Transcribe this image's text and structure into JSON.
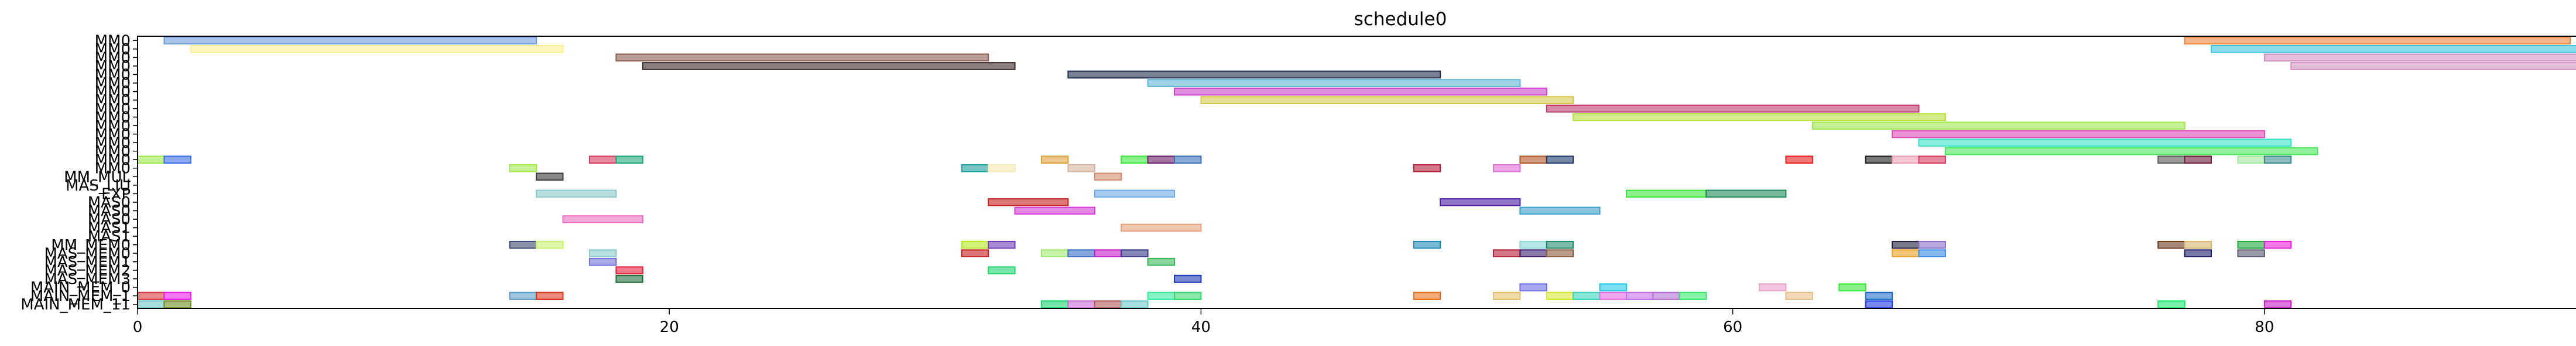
{
  "chart_data": {
    "type": "gantt",
    "title": "schedule0",
    "xlabel": "",
    "ylabel": "",
    "xlim": [
      0,
      95
    ],
    "xticks": [
      0,
      20,
      40,
      60,
      80
    ],
    "grid": false,
    "rows": [
      "MM0",
      "MM0",
      "MM0",
      "MM0",
      "MM0",
      "MM0",
      "MM0",
      "MM0",
      "MM0",
      "MM0",
      "MM0",
      "MM0",
      "MM0",
      "MM0",
      "MM0",
      "MM0",
      "MM_MUL",
      "MAS_LIU",
      "EXP",
      "MAS0",
      "MAS0",
      "MAS0",
      "MAS1",
      "MAS1",
      "MM_MEM0",
      "MAS_MEM0",
      "MAS_MEM1",
      "MAS_MEM2",
      "MAS_MEM3",
      "MAIN_MEM_0",
      "MAIN_MEM_1",
      "MAIN_MEM_11"
    ],
    "tasks": [
      {
        "row": 0,
        "start": 77,
        "end": 91.5,
        "color": "#e8843a"
      },
      {
        "row": 0,
        "start": 1,
        "end": 15,
        "color": "#6f9bd9"
      },
      {
        "row": 1,
        "start": 78,
        "end": 92.5,
        "color": "#3cc8e0"
      },
      {
        "row": 1,
        "start": 2,
        "end": 16,
        "color": "#f7f08f"
      },
      {
        "row": 2,
        "start": 80,
        "end": 95,
        "color": "#d291c0"
      },
      {
        "row": 2,
        "start": 18,
        "end": 32,
        "color": "#8c5e4f"
      },
      {
        "row": 3,
        "start": 81,
        "end": 95,
        "color": "#d291c0"
      },
      {
        "row": 3,
        "start": 19,
        "end": 33,
        "color": "#3a2a2a"
      },
      {
        "row": 4,
        "start": 35,
        "end": 49,
        "color": "#1e2a4a"
      },
      {
        "row": 5,
        "start": 38,
        "end": 52,
        "color": "#5fb6d6"
      },
      {
        "row": 6,
        "start": 39,
        "end": 53,
        "color": "#c945c9"
      },
      {
        "row": 7,
        "start": 40,
        "end": 54,
        "color": "#d6c94a"
      },
      {
        "row": 8,
        "start": 53,
        "end": 67,
        "color": "#c03a6e"
      },
      {
        "row": 9,
        "start": 54,
        "end": 68,
        "color": "#b5e03a"
      },
      {
        "row": 10,
        "start": 63,
        "end": 77,
        "color": "#9ee84a"
      },
      {
        "row": 11,
        "start": 66,
        "end": 80,
        "color": "#e04ab5"
      },
      {
        "row": 12,
        "start": 67,
        "end": 81,
        "color": "#3ae0c8"
      },
      {
        "row": 13,
        "start": 68,
        "end": 82,
        "color": "#4ae85a"
      },
      {
        "row": 14,
        "start": 0,
        "end": 1,
        "color": "#9ee84a"
      },
      {
        "row": 14,
        "start": 1,
        "end": 2,
        "color": "#3a6ee8"
      },
      {
        "row": 14,
        "start": 17,
        "end": 18,
        "color": "#d6385e"
      },
      {
        "row": 14,
        "start": 18,
        "end": 19,
        "color": "#1ea87a"
      },
      {
        "row": 14,
        "start": 62,
        "end": 63,
        "color": "#e81e1e"
      },
      {
        "row": 14,
        "start": 65,
        "end": 66,
        "color": "#1e1e1e"
      },
      {
        "row": 14,
        "start": 66,
        "end": 67,
        "color": "#e8a0b0"
      },
      {
        "row": 14,
        "start": 67,
        "end": 68,
        "color": "#d6385e"
      },
      {
        "row": 14,
        "start": 76,
        "end": 77,
        "color": "#5a5a5a"
      },
      {
        "row": 14,
        "start": 77,
        "end": 78,
        "color": "#6b1e3a"
      },
      {
        "row": 14,
        "start": 79,
        "end": 80,
        "color": "#a0e8a0"
      },
      {
        "row": 14,
        "start": 80,
        "end": 81,
        "color": "#3a8a8a"
      },
      {
        "row": 14,
        "start": 37,
        "end": 38,
        "color": "#3ae83a"
      },
      {
        "row": 14,
        "start": 38,
        "end": 39,
        "color": "#6b1e6b"
      },
      {
        "row": 14,
        "start": 39,
        "end": 40,
        "color": "#3a6eb5"
      },
      {
        "row": 14,
        "start": 52,
        "end": 53,
        "color": "#b5552a"
      },
      {
        "row": 14,
        "start": 53,
        "end": 54,
        "color": "#1e3a6b"
      },
      {
        "row": 14,
        "start": 34,
        "end": 35,
        "color": "#e0a03a"
      },
      {
        "row": 15,
        "start": 14,
        "end": 15,
        "color": "#9ee84a"
      },
      {
        "row": 15,
        "start": 31,
        "end": 32,
        "color": "#1ea0a0"
      },
      {
        "row": 15,
        "start": 32,
        "end": 33,
        "color": "#f7e8b5"
      },
      {
        "row": 15,
        "start": 35,
        "end": 36,
        "color": "#d6b59e"
      },
      {
        "row": 15,
        "start": 48,
        "end": 49,
        "color": "#b51e3a"
      },
      {
        "row": 15,
        "start": 51,
        "end": 52,
        "color": "#e06ed6"
      },
      {
        "row": 16,
        "start": 15,
        "end": 16,
        "color": "#3a3a3a"
      },
      {
        "row": 16,
        "start": 36,
        "end": 37,
        "color": "#d68a6e"
      },
      {
        "row": 18,
        "start": 15,
        "end": 18,
        "color": "#8ac8c8"
      },
      {
        "row": 18,
        "start": 36,
        "end": 39,
        "color": "#6ea8e8"
      },
      {
        "row": 18,
        "start": 56,
        "end": 59,
        "color": "#3ae83a"
      },
      {
        "row": 18,
        "start": 59,
        "end": 62,
        "color": "#1e8a5a"
      },
      {
        "row": 19,
        "start": 32,
        "end": 35,
        "color": "#c81e1e"
      },
      {
        "row": 19,
        "start": 49,
        "end": 52,
        "color": "#4a1ea8"
      },
      {
        "row": 20,
        "start": 33,
        "end": 36,
        "color": "#d63ad6"
      },
      {
        "row": 20,
        "start": 52,
        "end": 55,
        "color": "#3aa0c8"
      },
      {
        "row": 21,
        "start": 16,
        "end": 19,
        "color": "#e86ec0"
      },
      {
        "row": 22,
        "start": 37,
        "end": 40,
        "color": "#e8a07a"
      },
      {
        "row": 24,
        "start": 14,
        "end": 15,
        "color": "#3a4a6e"
      },
      {
        "row": 24,
        "start": 15,
        "end": 16,
        "color": "#c8f06e"
      },
      {
        "row": 24,
        "start": 31,
        "end": 32,
        "color": "#b5e81e"
      },
      {
        "row": 24,
        "start": 32,
        "end": 33,
        "color": "#6e3ab5"
      },
      {
        "row": 24,
        "start": 48,
        "end": 49,
        "color": "#1e8ab5"
      },
      {
        "row": 24,
        "start": 52,
        "end": 53,
        "color": "#8ad6d6"
      },
      {
        "row": 24,
        "start": 53,
        "end": 54,
        "color": "#1e8a6e"
      },
      {
        "row": 24,
        "start": 66,
        "end": 67,
        "color": "#1e1e3a"
      },
      {
        "row": 24,
        "start": 67,
        "end": 68,
        "color": "#8a6ec8"
      },
      {
        "row": 24,
        "start": 76,
        "end": 77,
        "color": "#6b3a1e"
      },
      {
        "row": 24,
        "start": 77,
        "end": 78,
        "color": "#d6b56e"
      },
      {
        "row": 24,
        "start": 79,
        "end": 80,
        "color": "#1ea83a"
      },
      {
        "row": 24,
        "start": 80,
        "end": 81,
        "color": "#e81ed6"
      },
      {
        "row": 25,
        "start": 17,
        "end": 18,
        "color": "#8ac8c8"
      },
      {
        "row": 25,
        "start": 31,
        "end": 32,
        "color": "#c81e1e"
      },
      {
        "row": 25,
        "start": 34,
        "end": 35,
        "color": "#9ee86e"
      },
      {
        "row": 25,
        "start": 35,
        "end": 36,
        "color": "#3a6ec8"
      },
      {
        "row": 25,
        "start": 36,
        "end": 37,
        "color": "#c81ec8"
      },
      {
        "row": 25,
        "start": 37,
        "end": 38,
        "color": "#3a3a8a"
      },
      {
        "row": 25,
        "start": 51,
        "end": 52,
        "color": "#b51e3a"
      },
      {
        "row": 25,
        "start": 52,
        "end": 53,
        "color": "#3a1e6b"
      },
      {
        "row": 25,
        "start": 53,
        "end": 54,
        "color": "#8a5a3a"
      },
      {
        "row": 25,
        "start": 66,
        "end": 67,
        "color": "#e8a01e"
      },
      {
        "row": 25,
        "start": 67,
        "end": 68,
        "color": "#3a8ae8"
      },
      {
        "row": 25,
        "start": 77,
        "end": 78,
        "color": "#1e1e6b"
      },
      {
        "row": 25,
        "start": 79,
        "end": 80,
        "color": "#5a5a6e"
      },
      {
        "row": 26,
        "start": 17,
        "end": 18,
        "color": "#6e6ed6"
      },
      {
        "row": 26,
        "start": 38,
        "end": 39,
        "color": "#3ab55a"
      },
      {
        "row": 27,
        "start": 18,
        "end": 19,
        "color": "#e81e3a"
      },
      {
        "row": 27,
        "start": 32,
        "end": 33,
        "color": "#1ed66e"
      },
      {
        "row": 28,
        "start": 18,
        "end": 19,
        "color": "#1e6e3a"
      },
      {
        "row": 28,
        "start": 39,
        "end": 40,
        "color": "#1e3ab5"
      },
      {
        "row": 29,
        "start": 52,
        "end": 53,
        "color": "#6e6ee8"
      },
      {
        "row": 29,
        "start": 55,
        "end": 56,
        "color": "#1ec8e8"
      },
      {
        "row": 29,
        "start": 61,
        "end": 62,
        "color": "#e8a0c8"
      },
      {
        "row": 29,
        "start": 64,
        "end": 65,
        "color": "#3ae83a"
      },
      {
        "row": 30,
        "start": 0,
        "end": 1,
        "color": "#d63a3a"
      },
      {
        "row": 30,
        "start": 1,
        "end": 2,
        "color": "#e81ee8"
      },
      {
        "row": 30,
        "start": 14,
        "end": 15,
        "color": "#5a9ec8"
      },
      {
        "row": 30,
        "start": 15,
        "end": 16,
        "color": "#d63a1e"
      },
      {
        "row": 30,
        "start": 38,
        "end": 39,
        "color": "#3ae89e"
      },
      {
        "row": 30,
        "start": 39,
        "end": 40,
        "color": "#3ad66e"
      },
      {
        "row": 30,
        "start": 48,
        "end": 49,
        "color": "#e86e1e"
      },
      {
        "row": 30,
        "start": 51,
        "end": 52,
        "color": "#e8c06e"
      },
      {
        "row": 30,
        "start": 53,
        "end": 54,
        "color": "#d6e83a"
      },
      {
        "row": 30,
        "start": 54,
        "end": 55,
        "color": "#3ad6c0"
      },
      {
        "row": 30,
        "start": 55,
        "end": 56,
        "color": "#e86ee8"
      },
      {
        "row": 30,
        "start": 56,
        "end": 57,
        "color": "#c86ee8"
      },
      {
        "row": 30,
        "start": 57,
        "end": 58,
        "color": "#b56ed6"
      },
      {
        "row": 30,
        "start": 58,
        "end": 59,
        "color": "#3ae86e"
      },
      {
        "row": 30,
        "start": 62,
        "end": 63,
        "color": "#e8c08a"
      },
      {
        "row": 30,
        "start": 65,
        "end": 66,
        "color": "#1e6ec8"
      },
      {
        "row": 31,
        "start": 0,
        "end": 1,
        "color": "#6ec8c8"
      },
      {
        "row": 31,
        "start": 1,
        "end": 2,
        "color": "#6e8a1e"
      },
      {
        "row": 31,
        "start": 34,
        "end": 35,
        "color": "#1ed66e"
      },
      {
        "row": 31,
        "start": 35,
        "end": 36,
        "color": "#c86ed6"
      },
      {
        "row": 31,
        "start": 36,
        "end": 37,
        "color": "#b55a5a"
      },
      {
        "row": 31,
        "start": 37,
        "end": 38,
        "color": "#6ec8c8"
      },
      {
        "row": 31,
        "start": 65,
        "end": 66,
        "color": "#1e3ae8"
      },
      {
        "row": 31,
        "start": 76,
        "end": 77,
        "color": "#1ee86e"
      },
      {
        "row": 31,
        "start": 80,
        "end": 81,
        "color": "#c81ec8"
      }
    ]
  }
}
